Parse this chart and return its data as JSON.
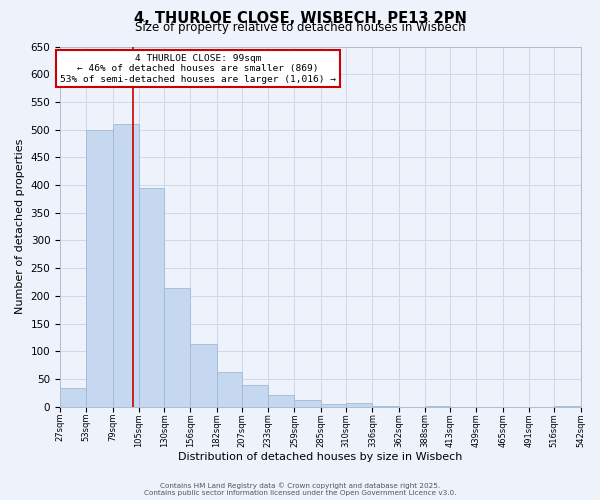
{
  "title": "4, THURLOE CLOSE, WISBECH, PE13 2PN",
  "subtitle": "Size of property relative to detached houses in Wisbech",
  "xlabel": "Distribution of detached houses by size in Wisbech",
  "ylabel": "Number of detached properties",
  "bar_edges": [
    27,
    53,
    79,
    105,
    130,
    156,
    182,
    207,
    233,
    259,
    285,
    310,
    336,
    362,
    388,
    413,
    439,
    465,
    491,
    516,
    542
  ],
  "bar_heights": [
    33,
    500,
    510,
    395,
    215,
    113,
    63,
    40,
    21,
    12,
    5,
    7,
    1,
    0,
    1,
    0,
    0,
    0,
    0,
    1
  ],
  "bar_color": "#c5d8f0",
  "bar_edgecolor": "#a0b8d8",
  "property_line_x": 99,
  "annotation_title": "4 THURLOE CLOSE: 99sqm",
  "annotation_line1": "← 46% of detached houses are smaller (869)",
  "annotation_line2": "53% of semi-detached houses are larger (1,016) →",
  "annotation_box_color": "#ffffff",
  "annotation_box_edgecolor": "#cc0000",
  "line_color": "#cc0000",
  "ylim": [
    0,
    650
  ],
  "yticks": [
    0,
    50,
    100,
    150,
    200,
    250,
    300,
    350,
    400,
    450,
    500,
    550,
    600,
    650
  ],
  "bg_color": "#eef2fb",
  "grid_color": "#d0d8ec",
  "footer_line1": "Contains HM Land Registry data © Crown copyright and database right 2025.",
  "footer_line2": "Contains public sector information licensed under the Open Government Licence v3.0."
}
